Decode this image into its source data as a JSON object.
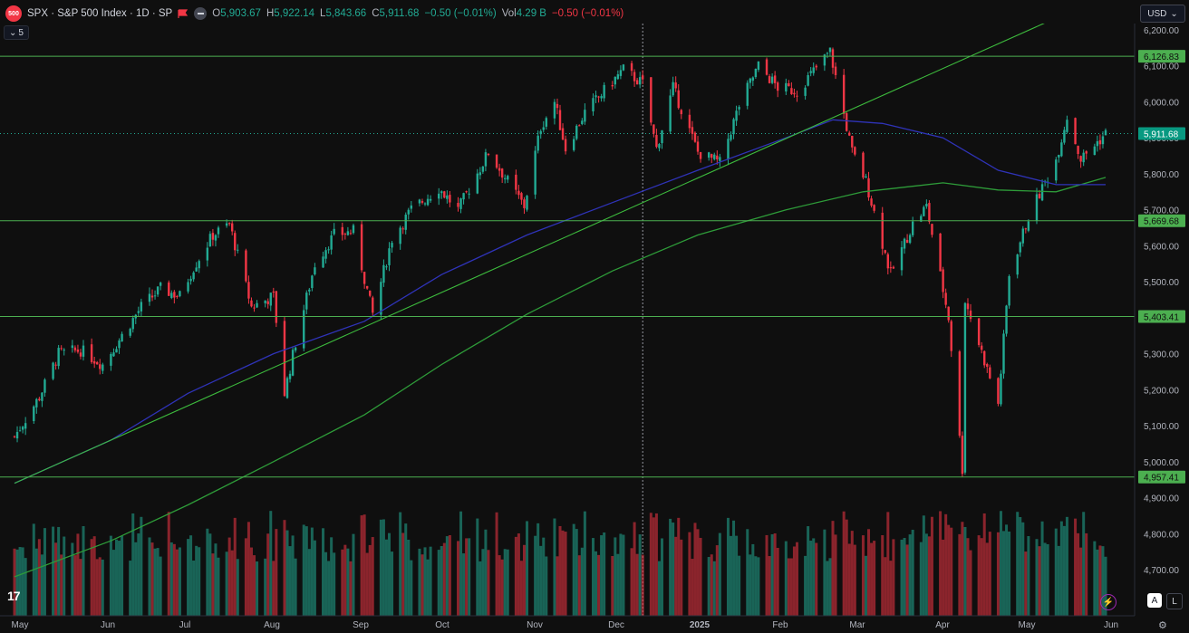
{
  "header": {
    "badge": "500",
    "symbol": "SPX · S&P 500 Index · 1D · SP",
    "open_label": "O",
    "open": "5,903.67",
    "high_label": "H",
    "high": "5,922.14",
    "low_label": "L",
    "low": "5,843.66",
    "close_label": "C",
    "close": "5,911.68",
    "change": "−0.50 (−0.01%)",
    "vol_label": "Vol",
    "volume": "4.29 B",
    "vol_change": "−0.50 (−0.01%)"
  },
  "indicators_toggle": "5",
  "currency": "USD",
  "logo": "17",
  "buttons": {
    "auto": "A",
    "log": "L"
  },
  "icons": {
    "bolt": "bolt-icon",
    "gear": "gear-icon",
    "flag": "flag-icon",
    "chevron": "chevron-down-icon"
  },
  "colors": {
    "up": "#22ab94",
    "down": "#f23645",
    "level": "#4caf50",
    "ma_blue": "#2f33b8",
    "ma_green": "#2e9c39",
    "trend": "#3dbb3d",
    "label_bg": "#4caf50"
  },
  "chart_data": {
    "type": "candlestick",
    "title": "SPX · S&P 500 Index · 1D · SP",
    "y_ticks": [
      "6,200.00",
      "6,100.00",
      "6,000.00",
      "5,900.00",
      "5,800.00",
      "5,700.00",
      "5,600.00",
      "5,500.00",
      "5,400.00",
      "5,300.00",
      "5,200.00",
      "5,100.00",
      "5,000.00",
      "4,900.00",
      "4,800.00",
      "4,700.00"
    ],
    "ylim": [
      4650,
      6230
    ],
    "x_labels": [
      "May",
      "Jun",
      "Jul",
      "Aug",
      "Sep",
      "Oct",
      "Nov",
      "Dec",
      "2025",
      "Feb",
      "Mar",
      "Apr",
      "May",
      "Jun"
    ],
    "horizontal_levels": [
      {
        "value": 6126.83,
        "label": "6,126.83"
      },
      {
        "value": 5669.68,
        "label": "5,669.68"
      },
      {
        "value": 5403.41,
        "label": "5,403.41"
      },
      {
        "value": 4957.41,
        "label": "4,957.41"
      }
    ],
    "last_price": {
      "value": 5911.68,
      "label": "5,911.68"
    },
    "trendline": [
      {
        "date": "2024-04-29",
        "value": 4940
      },
      {
        "date": "2025-05-14",
        "value": 6240
      }
    ],
    "crosshair_date": "2024-12-13",
    "price_path": [
      [
        "2024-04-29",
        5070
      ],
      [
        "2024-05-08",
        5180
      ],
      [
        "2024-05-15",
        5300
      ],
      [
        "2024-05-23",
        5310
      ],
      [
        "2024-05-31",
        5270
      ],
      [
        "2024-06-07",
        5350
      ],
      [
        "2024-06-14",
        5430
      ],
      [
        "2024-06-21",
        5480
      ],
      [
        "2024-06-28",
        5460
      ],
      [
        "2024-07-03",
        5540
      ],
      [
        "2024-07-10",
        5630
      ],
      [
        "2024-07-16",
        5660
      ],
      [
        "2024-07-24",
        5430
      ],
      [
        "2024-08-01",
        5460
      ],
      [
        "2024-08-05",
        5190
      ],
      [
        "2024-08-09",
        5330
      ],
      [
        "2024-08-16",
        5550
      ],
      [
        "2024-08-23",
        5630
      ],
      [
        "2024-08-30",
        5640
      ],
      [
        "2024-09-06",
        5410
      ],
      [
        "2024-09-13",
        5620
      ],
      [
        "2024-09-20",
        5700
      ],
      [
        "2024-09-30",
        5760
      ],
      [
        "2024-10-07",
        5700
      ],
      [
        "2024-10-18",
        5860
      ],
      [
        "2024-10-31",
        5710
      ],
      [
        "2024-11-06",
        5930
      ],
      [
        "2024-11-11",
        6000
      ],
      [
        "2024-11-15",
        5870
      ],
      [
        "2024-11-22",
        5970
      ],
      [
        "2024-12-06",
        6090
      ],
      [
        "2024-12-13",
        6050
      ],
      [
        "2024-12-18",
        5870
      ],
      [
        "2024-12-24",
        6040
      ],
      [
        "2025-01-02",
        5860
      ],
      [
        "2025-01-10",
        5830
      ],
      [
        "2025-01-17",
        5990
      ],
      [
        "2025-01-24",
        6100
      ],
      [
        "2025-01-31",
        6040
      ],
      [
        "2025-02-07",
        6030
      ],
      [
        "2025-02-19",
        6140
      ],
      [
        "2025-02-27",
        5860
      ],
      [
        "2025-03-04",
        5780
      ],
      [
        "2025-03-13",
        5520
      ],
      [
        "2025-03-21",
        5660
      ],
      [
        "2025-03-26",
        5710
      ],
      [
        "2025-04-03",
        5400
      ],
      [
        "2025-04-08",
        4980
      ],
      [
        "2025-04-09",
        5450
      ],
      [
        "2025-04-21",
        5160
      ],
      [
        "2025-04-25",
        5520
      ],
      [
        "2025-05-02",
        5680
      ],
      [
        "2025-05-12",
        5840
      ],
      [
        "2025-05-16",
        5960
      ],
      [
        "2025-05-21",
        5840
      ],
      [
        "2025-05-30",
        5911.68
      ]
    ],
    "ma_blue": [
      [
        "2024-04-29",
        4940
      ],
      [
        "2024-06-03",
        5060
      ],
      [
        "2024-07-01",
        5190
      ],
      [
        "2024-08-01",
        5300
      ],
      [
        "2024-09-03",
        5390
      ],
      [
        "2024-10-01",
        5520
      ],
      [
        "2024-11-01",
        5630
      ],
      [
        "2024-12-02",
        5720
      ],
      [
        "2025-01-02",
        5810
      ],
      [
        "2025-02-03",
        5900
      ],
      [
        "2025-02-20",
        5950
      ],
      [
        "2025-03-10",
        5940
      ],
      [
        "2025-04-01",
        5900
      ],
      [
        "2025-04-21",
        5810
      ],
      [
        "2025-05-12",
        5770
      ],
      [
        "2025-05-30",
        5770
      ]
    ],
    "ma_green": [
      [
        "2024-04-29",
        4680
      ],
      [
        "2024-06-03",
        4780
      ],
      [
        "2024-07-01",
        4880
      ],
      [
        "2024-08-01",
        5000
      ],
      [
        "2024-09-03",
        5130
      ],
      [
        "2024-10-01",
        5270
      ],
      [
        "2024-11-01",
        5410
      ],
      [
        "2024-12-02",
        5530
      ],
      [
        "2025-01-02",
        5630
      ],
      [
        "2025-02-03",
        5700
      ],
      [
        "2025-03-03",
        5750
      ],
      [
        "2025-04-01",
        5775
      ],
      [
        "2025-04-21",
        5755
      ],
      [
        "2025-05-12",
        5750
      ],
      [
        "2025-05-30",
        5790
      ]
    ],
    "volume_range": [
      0,
      7
    ]
  }
}
